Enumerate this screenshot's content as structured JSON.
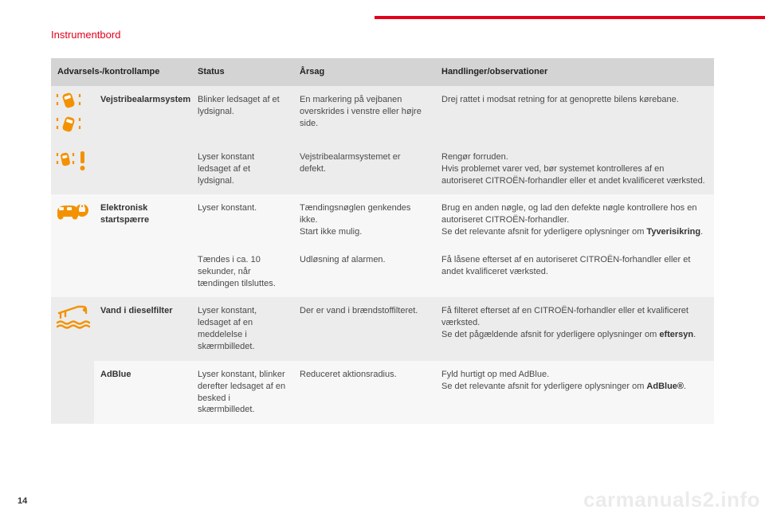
{
  "section_title": "Instrumentbord",
  "page_number": "14",
  "watermark": "carmanuals2.info",
  "colors": {
    "accent": "#e2001a",
    "icon": "#f39200",
    "header_bg": "#d4d4d4",
    "stripe_dark": "#ececec",
    "stripe_light": "#f7f7f7",
    "text": "#4a4a4a"
  },
  "table": {
    "headers": {
      "lamp": "Advarsels-/kontrollampe",
      "status": "Status",
      "cause": "Årsag",
      "action": "Handlinger/observationer"
    },
    "rows": [
      {
        "group": 0,
        "icon": "lane-depart",
        "name": "Vejstribealarmsystem",
        "status": "Blinker ledsaget af et lydsignal.",
        "cause": "En markering på vejbanen overskrides i venstre eller højre side.",
        "action": "Drej rattet i modsat retning for at genoprette bilens kørebane.",
        "name_rowspan": 2
      },
      {
        "group": 0,
        "icon": "lane-depart-warn",
        "status": "Lyser konstant ledsaget af et lydsignal.",
        "cause": "Vejstribealarmsystemet er defekt.",
        "action": "Rengør forruden.\nHvis problemet varer ved, bør systemet kontrolleres af en autoriseret CITROËN-forhandler eller et andet kvalificeret værksted."
      },
      {
        "group": 1,
        "icon": "immobiliser",
        "name": "Elektronisk startspærre",
        "status": "Lyser konstant.",
        "cause": "Tændingsnøglen genkendes ikke.\nStart ikke mulig.",
        "action_prefix": "Brug en anden nøgle, og lad den defekte nøgle kontrollere hos en autoriseret CITROËN-forhandler.\nSe det relevante afsnit for yderligere oplysninger om ",
        "action_bold": "Tyverisikring",
        "action_suffix": ".",
        "name_rowspan": 2,
        "icon_rowspan": 2
      },
      {
        "group": 1,
        "status": "Tændes i ca. 10 sekunder, når tændingen tilsluttes.",
        "cause": "Udløsning af alarmen.",
        "action": "Få låsene efterset af en autoriseret CITROËN-forhandler eller et andet kvalificeret værksted."
      },
      {
        "group": 2,
        "icon": "water-fuel",
        "name": "Vand i dieselfilter",
        "status": "Lyser konstant, ledsaget af en meddelelse i skærmbilledet.",
        "cause": "Der er vand i brændstoffilteret.",
        "action_prefix": "Få filteret efterset af en CITROËN-forhandler eller et kvalificeret værksted.\nSe det pågældende afsnit for yderligere oplysninger om ",
        "action_bold": "eftersyn",
        "action_suffix": ".",
        "icon_rowspan": 2
      },
      {
        "group": 3,
        "name": "AdBlue",
        "status": "Lyser konstant, blinker derefter ledsaget af en besked i skærmbilledet.",
        "cause": "Reduceret aktionsradius.",
        "action_prefix": "Fyld hurtigt op med AdBlue.\nSe det relevante afsnit for yderligere oplysninger om ",
        "action_bold": "AdBlue®",
        "action_suffix": "."
      }
    ]
  }
}
